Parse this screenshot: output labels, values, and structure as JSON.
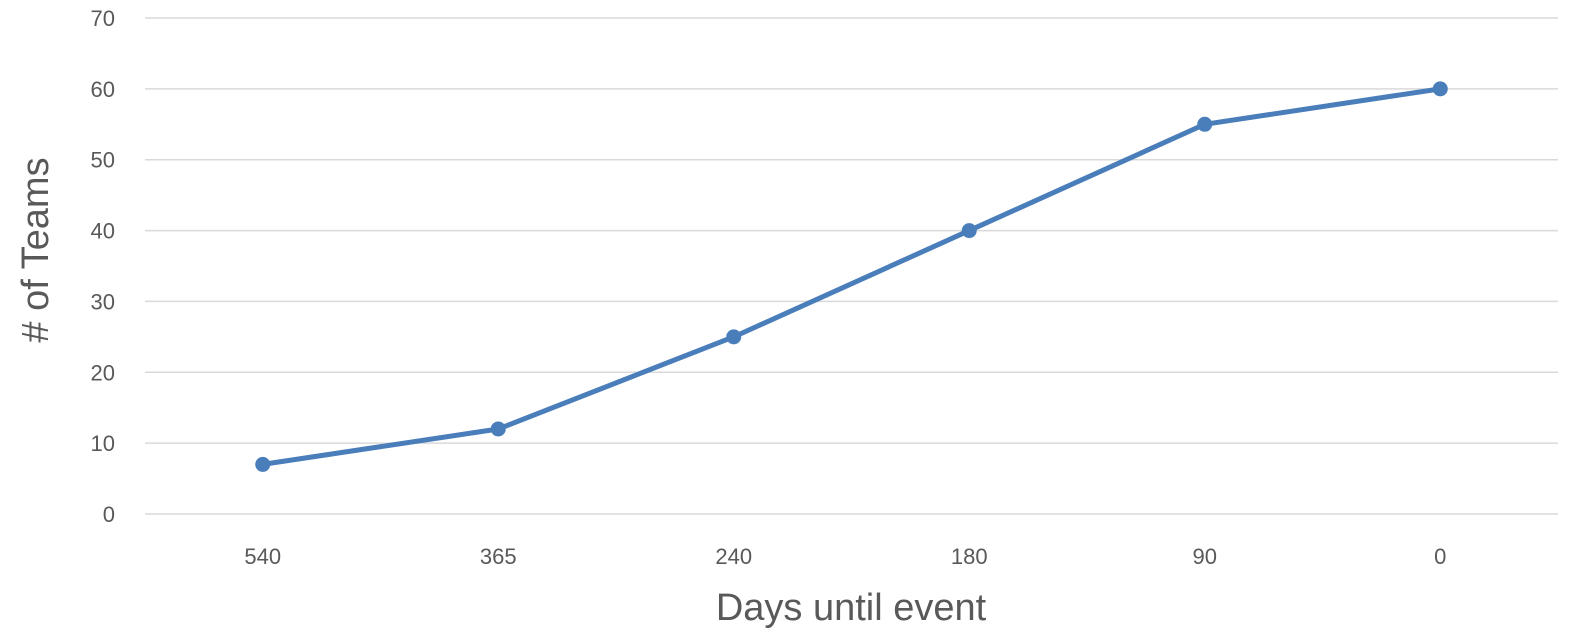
{
  "chart_data": {
    "type": "line",
    "title": "",
    "xlabel": "Days until event",
    "ylabel": "# of Teams",
    "categories": [
      "540",
      "365",
      "240",
      "180",
      "90",
      "0"
    ],
    "series": [
      {
        "values": [
          7,
          12,
          25,
          40,
          55,
          60
        ],
        "color": "#4a7ebb"
      }
    ],
    "ylim": [
      0,
      70
    ],
    "yticks": [
      0,
      10,
      20,
      30,
      40,
      50,
      60,
      70
    ],
    "grid": "horizontal",
    "legend": "none",
    "colors": {
      "gridline": "#d9d9d9",
      "text": "#595959",
      "line": "#4a7ebb"
    }
  }
}
